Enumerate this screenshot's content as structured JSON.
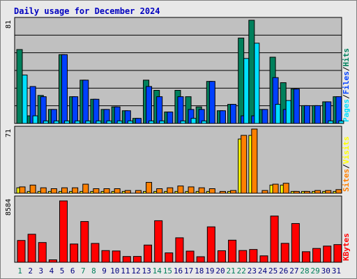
{
  "chart_data": {
    "type": "bar",
    "title": "Daily usage for December 2024",
    "days": [
      "1",
      "2",
      "3",
      "4",
      "5",
      "6",
      "7",
      "8",
      "9",
      "10",
      "11",
      "12",
      "13",
      "14",
      "15",
      "16",
      "17",
      "18",
      "19",
      "20",
      "21",
      "22",
      "23",
      "24",
      "25",
      "26",
      "27",
      "28",
      "29",
      "30",
      "31"
    ],
    "weekend_days": [
      "1",
      "7",
      "8",
      "14",
      "15",
      "21",
      "22",
      "28",
      "29"
    ],
    "colors": {
      "hits": "#00805c",
      "files": "#0040ff",
      "pages": "#00e0ff",
      "visits": "#ffff00",
      "sites": "#ff8000",
      "kbytes": "#ff0000",
      "weekday_label": "#000080",
      "weekend_label": "#00805c"
    },
    "panels": [
      {
        "name": "hits-files-pages",
        "max_label": "81",
        "max": 81,
        "legend": [
          "Pages",
          "/",
          "Files",
          "/",
          "Hits"
        ],
        "series": [
          {
            "name": "Hits",
            "values": [
              58,
              6,
              22,
              11,
              54,
              21,
              34,
              19,
              11,
              13,
              10,
              4,
              34,
              26,
              9,
              26,
              21,
              13,
              33,
              10,
              15,
              67,
              81,
              11,
              52,
              32,
              27,
              14,
              14,
              17,
              21
            ]
          },
          {
            "name": "Files",
            "values": [
              0,
              29,
              21,
              11,
              54,
              21,
              34,
              19,
              11,
              13,
              10,
              4,
              29,
              21,
              9,
              21,
              11,
              11,
              33,
              10,
              15,
              6,
              6,
              11,
              36,
              11,
              27,
              14,
              14,
              17,
              21
            ]
          },
          {
            "name": "Pages",
            "values": [
              38,
              6,
              2,
              2,
              2,
              2,
              2,
              2,
              2,
              2,
              2,
              0,
              2,
              2,
              0,
              2,
              4,
              2,
              0,
              0,
              0,
              51,
              63,
              0,
              15,
              18,
              0,
              0,
              0,
              2,
              2
            ]
          }
        ]
      },
      {
        "name": "visits-sites",
        "max_label": "71",
        "max": 71,
        "legend": [
          "Sites",
          "/",
          "Visits"
        ],
        "series": [
          {
            "name": "Visits",
            "values": [
              6,
              2,
              2,
              2,
              2,
              2,
              2,
              2,
              2,
              2,
              2,
              0,
              2,
              2,
              2,
              2,
              2,
              2,
              2,
              0,
              2,
              60,
              64,
              0,
              9,
              9,
              2,
              2,
              2,
              2,
              2
            ]
          },
          {
            "name": "Sites",
            "values": [
              7,
              9,
              6,
              5,
              6,
              6,
              10,
              5,
              5,
              5,
              3,
              3,
              12,
              5,
              6,
              8,
              7,
              6,
              5,
              2,
              3,
              64,
              71,
              3,
              10,
              11,
              2,
              2,
              3,
              3,
              4
            ]
          }
        ]
      },
      {
        "name": "kbytes",
        "max_label": "8584",
        "max": 8584,
        "legend": [
          "KBytes"
        ],
        "series": [
          {
            "name": "KBytes",
            "values": [
              2950,
              3790,
              2670,
              330,
              8300,
              2470,
              5510,
              2550,
              1580,
              1530,
              780,
              790,
              2330,
              5620,
              1270,
              3310,
              1510,
              750,
              4790,
              1560,
              2990,
              1590,
              1730,
              870,
              6250,
              2560,
              5240,
              1430,
              1870,
              2190,
              2390
            ]
          }
        ]
      }
    ]
  }
}
